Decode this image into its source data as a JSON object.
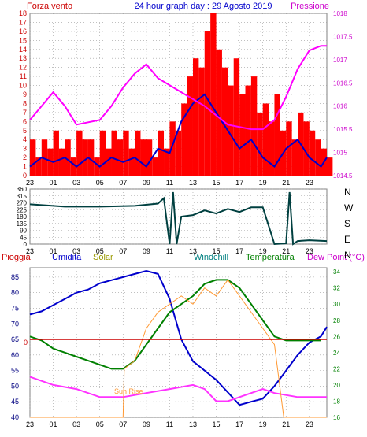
{
  "header": {
    "left_title": "Forza vento",
    "center_title": "24 hour graph day : 29 Agosto 2019",
    "right_title": "Pressione"
  },
  "x_hour_labels": [
    "23",
    "01",
    "03",
    "05",
    "07",
    "09",
    "11",
    "13",
    "15",
    "17",
    "19",
    "21",
    "23"
  ],
  "direction_labels": [
    "N",
    "W",
    "S",
    "E",
    "N"
  ],
  "colors": {
    "wind_gust": "#ff0000",
    "wind_avg": "#0000cc",
    "pressure": "#ff00ff",
    "direction": "#004040",
    "humidity": "#0000cc",
    "solar": "#ff9933",
    "temperature": "#008000",
    "dewpoint": "#ff33ff",
    "rain": "#cc0000",
    "axis_left": "#cc0000",
    "axis_right": "#cc00cc",
    "label_windchill": "#008080",
    "label_solar": "#999900"
  },
  "chart_data": [
    {
      "type": "line",
      "title": "24 hour graph day : 29 Agosto 2019",
      "x_ticks": [
        "23",
        "01",
        "03",
        "05",
        "07",
        "09",
        "11",
        "13",
        "15",
        "17",
        "19",
        "21",
        "23"
      ],
      "left_axis": {
        "label": "Forza vento",
        "ylim": [
          0,
          18
        ],
        "ticks": [
          0,
          1,
          2,
          3,
          4,
          5,
          6,
          7,
          8,
          9,
          10,
          11,
          12,
          13,
          14,
          15,
          16,
          17,
          18
        ]
      },
      "right_axis": {
        "label": "Pressione",
        "ylim": [
          1014.5,
          1018.0
        ],
        "ticks": [
          "1014.5",
          "1015",
          "1015.5",
          "1016",
          "1016.5",
          "1017",
          "1017.5",
          "1018"
        ]
      },
      "series": [
        {
          "name": "gust",
          "kind": "bar",
          "axis": "left",
          "points": [
            [
              0,
              4
            ],
            [
              0.5,
              2
            ],
            [
              1,
              4
            ],
            [
              1.5,
              3
            ],
            [
              2,
              5
            ],
            [
              2.5,
              3
            ],
            [
              3,
              4
            ],
            [
              3.5,
              2
            ],
            [
              4,
              5
            ],
            [
              4.5,
              4
            ],
            [
              5,
              4
            ],
            [
              5.5,
              2
            ],
            [
              6,
              5
            ],
            [
              6.5,
              3
            ],
            [
              7,
              5
            ],
            [
              7.5,
              4
            ],
            [
              8,
              5
            ],
            [
              8.5,
              3
            ],
            [
              9,
              5
            ],
            [
              9.5,
              4
            ],
            [
              10,
              4
            ],
            [
              10.5,
              2
            ],
            [
              11,
              5
            ],
            [
              11.5,
              3
            ],
            [
              12,
              6
            ],
            [
              12.5,
              5
            ],
            [
              13,
              8
            ],
            [
              13.5,
              11
            ],
            [
              14,
              13
            ],
            [
              14.5,
              12
            ],
            [
              15,
              16
            ],
            [
              15.5,
              18
            ],
            [
              16,
              14
            ],
            [
              16.5,
              12
            ],
            [
              17,
              10
            ],
            [
              17.5,
              13
            ],
            [
              18,
              9
            ],
            [
              18.5,
              10
            ],
            [
              19,
              11
            ],
            [
              19.5,
              7
            ],
            [
              20,
              8
            ],
            [
              20.5,
              6
            ],
            [
              21,
              9
            ],
            [
              21.5,
              5
            ],
            [
              22,
              6
            ],
            [
              22.5,
              4
            ],
            [
              23,
              7
            ],
            [
              23.5,
              6
            ],
            [
              24,
              5
            ],
            [
              24.5,
              4
            ],
            [
              25,
              3
            ],
            [
              25.5,
              2
            ]
          ]
        },
        {
          "name": "avg",
          "kind": "line",
          "axis": "left",
          "points": [
            [
              0,
              1
            ],
            [
              1,
              2
            ],
            [
              2,
              1.5
            ],
            [
              3,
              2
            ],
            [
              4,
              1
            ],
            [
              5,
              2
            ],
            [
              6,
              1
            ],
            [
              7,
              2
            ],
            [
              8,
              1.5
            ],
            [
              9,
              2
            ],
            [
              10,
              1
            ],
            [
              11,
              3
            ],
            [
              12,
              2.5
            ],
            [
              13,
              6
            ],
            [
              14,
              8
            ],
            [
              15,
              9
            ],
            [
              16,
              7
            ],
            [
              17,
              5
            ],
            [
              18,
              3
            ],
            [
              19,
              4
            ],
            [
              20,
              2
            ],
            [
              21,
              1
            ],
            [
              22,
              3
            ],
            [
              23,
              4
            ],
            [
              24,
              2
            ],
            [
              25,
              1
            ],
            [
              25.5,
              2
            ]
          ]
        },
        {
          "name": "pressione",
          "kind": "line",
          "axis": "right",
          "points": [
            [
              0,
              1015.7
            ],
            [
              2,
              1016.3
            ],
            [
              3,
              1016.0
            ],
            [
              4,
              1015.6
            ],
            [
              6,
              1015.7
            ],
            [
              7,
              1016.0
            ],
            [
              8,
              1016.4
            ],
            [
              9,
              1016.7
            ],
            [
              10,
              1016.9
            ],
            [
              11,
              1016.6
            ],
            [
              13,
              1016.3
            ],
            [
              15,
              1016.0
            ],
            [
              17,
              1015.6
            ],
            [
              19,
              1015.5
            ],
            [
              20,
              1015.5
            ],
            [
              21,
              1015.7
            ],
            [
              22,
              1016.2
            ],
            [
              23,
              1016.8
            ],
            [
              24,
              1017.2
            ],
            [
              25,
              1017.3
            ],
            [
              25.5,
              1017.3
            ]
          ]
        }
      ]
    },
    {
      "type": "line",
      "x_ticks": [
        "23",
        "01",
        "03",
        "05",
        "07",
        "09",
        "11",
        "13",
        "15",
        "17",
        "19",
        "21",
        "23"
      ],
      "left_axis": {
        "ylim": [
          0,
          360
        ],
        "ticks": [
          0,
          45,
          90,
          135,
          180,
          225,
          270,
          315,
          360
        ]
      },
      "right_axis": {
        "labels": [
          "N",
          "W",
          "S",
          "E",
          "N"
        ]
      },
      "series": [
        {
          "name": "direzione",
          "kind": "line",
          "points": [
            [
              0,
              260
            ],
            [
              3,
              245
            ],
            [
              6,
              245
            ],
            [
              9,
              250
            ],
            [
              11,
              265
            ],
            [
              11.5,
              300
            ],
            [
              12,
              0
            ],
            [
              12.3,
              340
            ],
            [
              12.6,
              0
            ],
            [
              13,
              180
            ],
            [
              14,
              190
            ],
            [
              15,
              220
            ],
            [
              16,
              200
            ],
            [
              17,
              230
            ],
            [
              18,
              210
            ],
            [
              19,
              240
            ],
            [
              20,
              240
            ],
            [
              21,
              0
            ],
            [
              22,
              5
            ],
            [
              22.3,
              340
            ],
            [
              22.6,
              0
            ],
            [
              23,
              20
            ],
            [
              24,
              25
            ],
            [
              25.5,
              20
            ]
          ]
        }
      ]
    },
    {
      "type": "line",
      "x_ticks": [
        "23",
        "01",
        "03",
        "05",
        "07",
        "09",
        "11",
        "13",
        "15",
        "17",
        "19",
        "21",
        "23"
      ],
      "left_axis": {
        "ylim": [
          40,
          88
        ],
        "ticks": [
          40,
          45,
          50,
          55,
          60,
          65,
          70,
          75,
          80,
          85
        ]
      },
      "right_axis": {
        "ylim": [
          16,
          34.5
        ],
        "ticks": [
          16,
          18,
          20,
          22,
          24,
          26,
          28,
          30,
          32,
          34
        ]
      },
      "legend": [
        "Pioggia",
        "Umidita",
        "Solar",
        "Windchill",
        "Temperatura",
        "Dew Point (°C)"
      ],
      "annotations": [
        "Sun Rise"
      ],
      "series": [
        {
          "name": "Umidita",
          "axis": "left",
          "points": [
            [
              0,
              73
            ],
            [
              1,
              74
            ],
            [
              2,
              76
            ],
            [
              3,
              78
            ],
            [
              4,
              80
            ],
            [
              5,
              81
            ],
            [
              6,
              83
            ],
            [
              7,
              84
            ],
            [
              8,
              85
            ],
            [
              9,
              86
            ],
            [
              10,
              87
            ],
            [
              11,
              86
            ],
            [
              12,
              78
            ],
            [
              13,
              65
            ],
            [
              14,
              58
            ],
            [
              15,
              55
            ],
            [
              16,
              52
            ],
            [
              17,
              48
            ],
            [
              18,
              44
            ],
            [
              19,
              45
            ],
            [
              20,
              46
            ],
            [
              21,
              50
            ],
            [
              22,
              55
            ],
            [
              23,
              60
            ],
            [
              24,
              64
            ],
            [
              25,
              66
            ],
            [
              25.5,
              69
            ]
          ]
        },
        {
          "name": "Temperatura",
          "axis": "right",
          "points": [
            [
              0,
              26
            ],
            [
              1,
              25.5
            ],
            [
              2,
              24.5
            ],
            [
              3,
              24
            ],
            [
              4,
              23.5
            ],
            [
              5,
              23
            ],
            [
              6,
              22.5
            ],
            [
              7,
              22
            ],
            [
              8,
              22
            ],
            [
              9,
              23
            ],
            [
              10,
              25
            ],
            [
              11,
              27
            ],
            [
              12,
              29
            ],
            [
              13,
              30
            ],
            [
              14,
              31
            ],
            [
              15,
              32.5
            ],
            [
              16,
              33
            ],
            [
              17,
              33
            ],
            [
              18,
              32
            ],
            [
              19,
              30
            ],
            [
              20,
              28
            ],
            [
              21,
              26
            ],
            [
              22,
              25.5
            ],
            [
              23,
              25.5
            ],
            [
              24,
              25.5
            ],
            [
              25,
              25.5
            ]
          ]
        },
        {
          "name": "Dew Point (°C)",
          "axis": "right",
          "points": [
            [
              0,
              21
            ],
            [
              2,
              20
            ],
            [
              4,
              19.5
            ],
            [
              6,
              18.5
            ],
            [
              8,
              18.5
            ],
            [
              10,
              19
            ],
            [
              12,
              19.5
            ],
            [
              14,
              20
            ],
            [
              15,
              19.5
            ],
            [
              16,
              18
            ],
            [
              17,
              18
            ],
            [
              18,
              18.5
            ],
            [
              19,
              19
            ],
            [
              20,
              19.5
            ],
            [
              21,
              19
            ],
            [
              23,
              18.5
            ],
            [
              25,
              18.5
            ],
            [
              25.5,
              18.5
            ]
          ]
        },
        {
          "name": "Solar",
          "axis": "right",
          "points": [
            [
              0,
              16
            ],
            [
              8,
              16
            ],
            [
              8.1,
              22
            ],
            [
              9,
              23
            ],
            [
              10,
              27
            ],
            [
              11,
              29
            ],
            [
              12,
              30
            ],
            [
              13,
              31
            ],
            [
              14,
              30
            ],
            [
              15,
              32
            ],
            [
              16,
              31
            ],
            [
              17,
              33
            ],
            [
              18,
              31
            ],
            [
              19,
              29
            ],
            [
              20,
              27
            ],
            [
              21,
              25
            ],
            [
              21.8,
              16
            ],
            [
              22,
              16
            ],
            [
              25.5,
              16
            ]
          ]
        },
        {
          "name": "Pioggia",
          "axis": "left",
          "points": [
            [
              0,
              65
            ],
            [
              25.5,
              65
            ]
          ]
        }
      ]
    }
  ]
}
